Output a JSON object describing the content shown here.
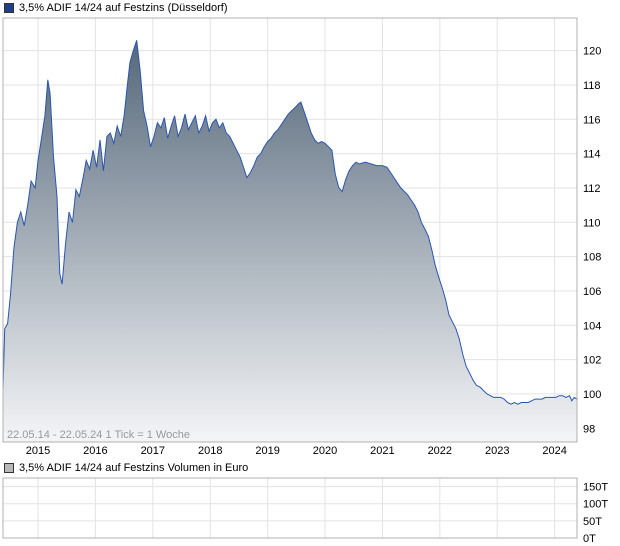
{
  "legend_price": "3,5% ADIF  14/24 auf Festzins (Düsseldorf)",
  "legend_volume": "3,5% ADIF  14/24 auf Festzins Volumen in Euro",
  "period_text": "22.05.14 - 22.05.24   1 Tick = 1 Woche",
  "colors": {
    "line": "#2a56b0",
    "fill_top": "#56687a",
    "fill_bottom": "#f4f5f7",
    "price_swatch": "#1f3f87",
    "volume_swatch": "#b8b8b8",
    "grid": "#e3e3e3"
  },
  "chart_data": [
    {
      "type": "area",
      "x_unit": "year",
      "x_ticks": [
        "2015",
        "2016",
        "2017",
        "2018",
        "2019",
        "2020",
        "2021",
        "2022",
        "2023",
        "2024"
      ],
      "y_ticks": [
        98,
        100,
        102,
        104,
        106,
        108,
        110,
        112,
        114,
        116,
        118,
        120
      ],
      "ylim": [
        97.2,
        121.9
      ],
      "xlim": [
        2014.39,
        2024.39
      ],
      "grid": true,
      "series": [
        {
          "points": [
            [
              2014.39,
              100.2
            ],
            [
              2014.42,
              103.8
            ],
            [
              2014.47,
              104.1
            ],
            [
              2014.52,
              105.8
            ],
            [
              2014.58,
              108.5
            ],
            [
              2014.64,
              110.0
            ],
            [
              2014.7,
              110.6
            ],
            [
              2014.76,
              109.8
            ],
            [
              2014.82,
              111.0
            ],
            [
              2014.88,
              112.4
            ],
            [
              2014.95,
              112.0
            ],
            [
              2015.0,
              113.6
            ],
            [
              2015.06,
              114.9
            ],
            [
              2015.12,
              116.2
            ],
            [
              2015.17,
              118.3
            ],
            [
              2015.21,
              117.5
            ],
            [
              2015.27,
              113.8
            ],
            [
              2015.33,
              111.5
            ],
            [
              2015.38,
              107.0
            ],
            [
              2015.42,
              106.4
            ],
            [
              2015.48,
              108.8
            ],
            [
              2015.54,
              110.6
            ],
            [
              2015.6,
              110.0
            ],
            [
              2015.66,
              111.9
            ],
            [
              2015.72,
              111.5
            ],
            [
              2015.78,
              112.5
            ],
            [
              2015.84,
              113.6
            ],
            [
              2015.9,
              113.1
            ],
            [
              2015.96,
              114.2
            ],
            [
              2016.02,
              113.2
            ],
            [
              2016.08,
              114.8
            ],
            [
              2016.14,
              113.0
            ],
            [
              2016.2,
              115.0
            ],
            [
              2016.26,
              115.2
            ],
            [
              2016.32,
              114.6
            ],
            [
              2016.38,
              115.6
            ],
            [
              2016.44,
              115.0
            ],
            [
              2016.5,
              116.2
            ],
            [
              2016.55,
              117.8
            ],
            [
              2016.6,
              119.3
            ],
            [
              2016.66,
              120.0
            ],
            [
              2016.72,
              120.6
            ],
            [
              2016.78,
              118.8
            ],
            [
              2016.84,
              116.5
            ],
            [
              2016.9,
              115.6
            ],
            [
              2016.96,
              114.4
            ],
            [
              2017.02,
              115.0
            ],
            [
              2017.08,
              115.8
            ],
            [
              2017.14,
              115.5
            ],
            [
              2017.2,
              116.1
            ],
            [
              2017.26,
              114.9
            ],
            [
              2017.32,
              115.6
            ],
            [
              2017.38,
              116.2
            ],
            [
              2017.44,
              115.0
            ],
            [
              2017.5,
              115.5
            ],
            [
              2017.56,
              116.3
            ],
            [
              2017.62,
              115.4
            ],
            [
              2017.68,
              115.8
            ],
            [
              2017.74,
              116.2
            ],
            [
              2017.8,
              115.2
            ],
            [
              2017.86,
              115.6
            ],
            [
              2017.92,
              116.2
            ],
            [
              2017.98,
              115.3
            ],
            [
              2018.04,
              115.8
            ],
            [
              2018.1,
              116.0
            ],
            [
              2018.16,
              115.5
            ],
            [
              2018.22,
              115.8
            ],
            [
              2018.28,
              115.2
            ],
            [
              2018.34,
              115.0
            ],
            [
              2018.4,
              114.6
            ],
            [
              2018.46,
              114.2
            ],
            [
              2018.52,
              113.8
            ],
            [
              2018.58,
              113.2
            ],
            [
              2018.64,
              112.6
            ],
            [
              2018.7,
              112.9
            ],
            [
              2018.76,
              113.3
            ],
            [
              2018.82,
              113.8
            ],
            [
              2018.88,
              114.0
            ],
            [
              2018.94,
              114.4
            ],
            [
              2019.0,
              114.7
            ],
            [
              2019.06,
              114.9
            ],
            [
              2019.12,
              115.2
            ],
            [
              2019.18,
              115.4
            ],
            [
              2019.24,
              115.7
            ],
            [
              2019.3,
              116.0
            ],
            [
              2019.36,
              116.3
            ],
            [
              2019.42,
              116.5
            ],
            [
              2019.48,
              116.7
            ],
            [
              2019.54,
              116.9
            ],
            [
              2019.58,
              117.0
            ],
            [
              2019.64,
              116.4
            ],
            [
              2019.7,
              115.8
            ],
            [
              2019.76,
              115.2
            ],
            [
              2019.82,
              114.8
            ],
            [
              2019.88,
              114.6
            ],
            [
              2019.94,
              114.7
            ],
            [
              2020.0,
              114.6
            ],
            [
              2020.06,
              114.4
            ],
            [
              2020.12,
              114.2
            ],
            [
              2020.18,
              112.8
            ],
            [
              2020.24,
              112.0
            ],
            [
              2020.3,
              111.8
            ],
            [
              2020.36,
              112.5
            ],
            [
              2020.42,
              113.0
            ],
            [
              2020.48,
              113.3
            ],
            [
              2020.54,
              113.5
            ],
            [
              2020.6,
              113.4
            ],
            [
              2020.7,
              113.5
            ],
            [
              2020.8,
              113.4
            ],
            [
              2020.9,
              113.3
            ],
            [
              2021.0,
              113.3
            ],
            [
              2021.08,
              113.2
            ],
            [
              2021.14,
              112.9
            ],
            [
              2021.2,
              112.6
            ],
            [
              2021.26,
              112.3
            ],
            [
              2021.32,
              112.0
            ],
            [
              2021.38,
              111.8
            ],
            [
              2021.44,
              111.6
            ],
            [
              2021.5,
              111.3
            ],
            [
              2021.56,
              111.0
            ],
            [
              2021.62,
              110.6
            ],
            [
              2021.68,
              110.0
            ],
            [
              2021.74,
              109.6
            ],
            [
              2021.8,
              109.2
            ],
            [
              2021.86,
              108.4
            ],
            [
              2021.92,
              107.5
            ],
            [
              2021.98,
              106.8
            ],
            [
              2022.04,
              106.2
            ],
            [
              2022.1,
              105.5
            ],
            [
              2022.16,
              104.6
            ],
            [
              2022.22,
              104.2
            ],
            [
              2022.28,
              103.8
            ],
            [
              2022.34,
              103.2
            ],
            [
              2022.4,
              102.3
            ],
            [
              2022.46,
              101.6
            ],
            [
              2022.52,
              101.2
            ],
            [
              2022.58,
              100.8
            ],
            [
              2022.64,
              100.5
            ],
            [
              2022.7,
              100.4
            ],
            [
              2022.76,
              100.2
            ],
            [
              2022.82,
              100.0
            ],
            [
              2022.88,
              99.9
            ],
            [
              2022.94,
              99.8
            ],
            [
              2023.0,
              99.8
            ],
            [
              2023.06,
              99.8
            ],
            [
              2023.12,
              99.7
            ],
            [
              2023.18,
              99.5
            ],
            [
              2023.24,
              99.4
            ],
            [
              2023.3,
              99.5
            ],
            [
              2023.36,
              99.4
            ],
            [
              2023.42,
              99.5
            ],
            [
              2023.48,
              99.5
            ],
            [
              2023.54,
              99.5
            ],
            [
              2023.6,
              99.6
            ],
            [
              2023.66,
              99.7
            ],
            [
              2023.72,
              99.7
            ],
            [
              2023.78,
              99.7
            ],
            [
              2023.84,
              99.8
            ],
            [
              2023.9,
              99.8
            ],
            [
              2023.96,
              99.8
            ],
            [
              2024.02,
              99.8
            ],
            [
              2024.08,
              99.9
            ],
            [
              2024.14,
              99.9
            ],
            [
              2024.2,
              99.8
            ],
            [
              2024.26,
              99.9
            ],
            [
              2024.3,
              99.6
            ],
            [
              2024.34,
              99.8
            ],
            [
              2024.39,
              99.7
            ]
          ]
        }
      ]
    },
    {
      "type": "bar",
      "x_unit": "year",
      "y_ticks": [
        "0T",
        "50T",
        "100T",
        "150T"
      ],
      "y_values": [
        0,
        50000,
        100000,
        150000
      ],
      "ylim": [
        0,
        175000
      ],
      "grid": true,
      "values": []
    }
  ]
}
